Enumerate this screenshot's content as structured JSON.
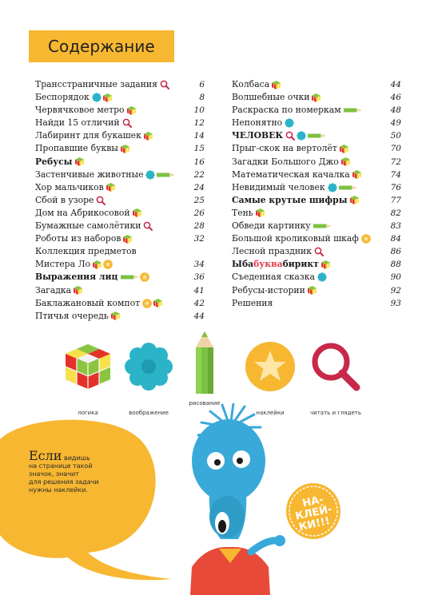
{
  "title": "Содержание",
  "left_column": [
    {
      "label": "Трансстраничные задания",
      "icons": [
        "magnifier-icon"
      ],
      "page": "6"
    },
    {
      "label": "Беспорядок",
      "icons": [
        "flower-icon",
        "cube-icon"
      ],
      "page": "8"
    },
    {
      "label": "Червячковое метро",
      "icons": [
        "cube-icon"
      ],
      "page": "10"
    },
    {
      "label": "Найди 15 отличий",
      "icons": [
        "magnifier-icon"
      ],
      "page": "12"
    },
    {
      "label": "Лабиринт для букашек",
      "icons": [
        "cube-icon"
      ],
      "page": "14"
    },
    {
      "label": "Пропавшие буквы",
      "icons": [
        "cube-icon"
      ],
      "page": "15"
    },
    {
      "label": "Ребусы",
      "bold": true,
      "icons": [
        "cube-icon"
      ],
      "page": "16"
    },
    {
      "label": "Застенчивые животные",
      "icons": [
        "flower-icon",
        "pencil-icon"
      ],
      "page": "22"
    },
    {
      "label": "Хор мальчиков",
      "icons": [
        "cube-icon"
      ],
      "page": "24"
    },
    {
      "label": "Сбой в узоре",
      "icons": [
        "magnifier-icon"
      ],
      "page": "25"
    },
    {
      "label": "Дом на Абрикосовой",
      "icons": [
        "cube-icon"
      ],
      "page": "26"
    },
    {
      "label": "Бумажные самолётики",
      "icons": [
        "magnifier-icon"
      ],
      "page": "28"
    },
    {
      "label": "Роботы из наборов",
      "icons": [
        "cube-icon"
      ],
      "page": "32"
    },
    {
      "label": "Коллекция предметов",
      "icons": [],
      "page": ""
    },
    {
      "label": "Мистера Ло",
      "icons": [
        "cube-icon",
        "sticker-icon"
      ],
      "page": "34"
    },
    {
      "label": "Выражения лиц",
      "bold": true,
      "icons": [
        "pencil-icon",
        "sticker-icon"
      ],
      "page": "36"
    },
    {
      "label": "Загадка",
      "icons": [
        "cube-icon"
      ],
      "page": "41"
    },
    {
      "label": "Баклажановый компот",
      "icons": [
        "sticker-icon",
        "cube-icon"
      ],
      "page": "42"
    },
    {
      "label": "Птичья очередь",
      "icons": [
        "cube-icon"
      ],
      "page": "44"
    }
  ],
  "right_column": [
    {
      "label": "Колбаса",
      "icons": [
        "cube-icon"
      ],
      "page": "44"
    },
    {
      "label": "Волшебные очки",
      "icons": [
        "cube-icon"
      ],
      "page": "46"
    },
    {
      "label": "Раскраска по номеркам",
      "icons": [
        "pencil-icon"
      ],
      "page": "48"
    },
    {
      "label": "Непонятно",
      "icons": [
        "flower-icon"
      ],
      "page": "49"
    },
    {
      "label": "ЧЕЛОВЕК",
      "bold": true,
      "icons": [
        "magnifier-icon",
        "flower-icon",
        "pencil-icon"
      ],
      "page": "50"
    },
    {
      "label": "Прыг-скок на вертолёт",
      "icons": [
        "cube-icon"
      ],
      "page": "70"
    },
    {
      "label": "Загадки Большого Джо",
      "icons": [
        "cube-icon"
      ],
      "page": "72"
    },
    {
      "label": "Математическая качалка",
      "icons": [
        "cube-icon"
      ],
      "page": "74"
    },
    {
      "label": "Невидимый человек",
      "icons": [
        "flower-icon",
        "pencil-icon"
      ],
      "page": "76"
    },
    {
      "label": "Самые крутые шифры",
      "bold": true,
      "icons": [
        "cube-icon"
      ],
      "page": "77"
    },
    {
      "label": "Тень",
      "icons": [
        "cube-icon"
      ],
      "page": "82"
    },
    {
      "label": "Обведи картинку",
      "icons": [
        "pencil-icon"
      ],
      "page": "83"
    },
    {
      "label": "Большой кроликовый шкаф",
      "icons": [
        "sticker-icon"
      ],
      "page": "84"
    },
    {
      "label": "Лесной праздник",
      "icons": [
        "magnifier-icon"
      ],
      "page": "86"
    },
    {
      "label_parts": [
        "Ыба",
        "буква",
        "бирикт"
      ],
      "bold": true,
      "icons": [
        "cube-icon"
      ],
      "page": "88"
    },
    {
      "label": "Съеденная сказка",
      "icons": [
        "flower-icon"
      ],
      "page": "90"
    },
    {
      "label": "Ребусы-истории",
      "icons": [
        "cube-icon"
      ],
      "page": "92"
    },
    {
      "label": "Решения",
      "icons": [],
      "page": "93"
    }
  ],
  "legend": [
    {
      "icon": "logic-cube-icon",
      "caption": "логика"
    },
    {
      "icon": "imagination-flower-icon",
      "caption": "воображение"
    },
    {
      "icon": "drawing-pencil-icon",
      "caption": "рисование"
    },
    {
      "icon": "sticker-star-icon",
      "caption": "наклейки"
    },
    {
      "icon": "read-magnifier-icon",
      "caption": "читать и глядеть"
    }
  ],
  "callout": {
    "big": "Если",
    "line1": "видишь",
    "line2": "на странице такой",
    "line3": "значок, значит",
    "line4": "для решения задачи",
    "line5": "нужны наклейки."
  },
  "badge": {
    "line1": "НА-",
    "line2": "КЛЕЙ-",
    "line3": "КИ!!!"
  },
  "colors": {
    "accent_orange": "#f7b731",
    "teal": "#2bb3c8",
    "red": "#e23b4c",
    "pencil_green": "#7cc242",
    "monster_blue": "#39a9d9",
    "shirt_red": "#e84a3a"
  }
}
